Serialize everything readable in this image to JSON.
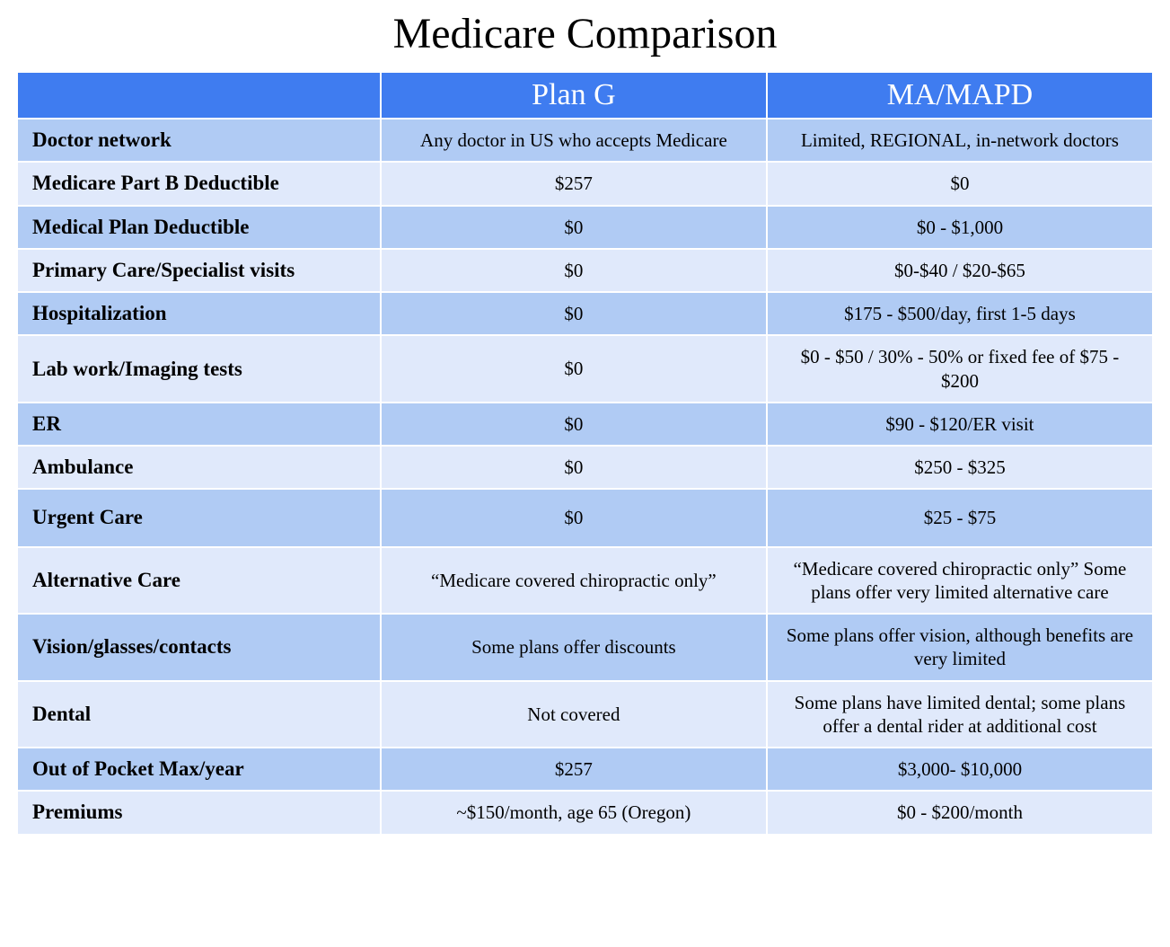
{
  "title": "Medicare Comparison",
  "columns": [
    "",
    "Plan G",
    "MA/MAPD"
  ],
  "colors": {
    "header_bg": "#3f7cf0",
    "header_text": "#ffffff",
    "band_a": "#b0cbf4",
    "band_b": "#e0e9fb",
    "text": "#000000",
    "background": "#ffffff"
  },
  "rows": [
    {
      "label": "Doctor network",
      "plan_g": "Any doctor in US who accepts Medicare",
      "ma": "Limited, REGIONAL, in-network doctors",
      "band": "a"
    },
    {
      "label": "Medicare Part B Deductible",
      "plan_g": "$257",
      "ma": "$0",
      "band": "b"
    },
    {
      "label": "Medical Plan Deductible",
      "plan_g": "$0",
      "ma": "$0 - $1,000",
      "band": "a"
    },
    {
      "label": "Primary Care/Specialist visits",
      "plan_g": "$0",
      "ma": "$0-$40 / $20-$65",
      "band": "b"
    },
    {
      "label": "Hospitalization",
      "plan_g": "$0",
      "ma": "$175 - $500/day, first 1-5 days",
      "band": "a"
    },
    {
      "label": "Lab work/Imaging tests",
      "plan_g": "$0",
      "ma": "$0 - $50  /  30% - 50% or fixed fee of $75 - $200",
      "band": "b"
    },
    {
      "label": "ER",
      "plan_g": "$0",
      "ma": "$90 - $120/ER visit",
      "band": "a"
    },
    {
      "label": "Ambulance",
      "plan_g": "$0",
      "ma": "$250 - $325",
      "band": "b"
    },
    {
      "label": "Urgent Care",
      "plan_g": "$0",
      "ma": "$25 - $75",
      "band": "a",
      "tall": true
    },
    {
      "label": "Alternative Care",
      "plan_g": "“Medicare covered chiropractic only”",
      "ma": "“Medicare covered chiropractic only” Some plans offer very limited alternative care",
      "band": "b"
    },
    {
      "label": "Vision/glasses/contacts",
      "plan_g": "Some plans offer discounts",
      "ma": "Some plans offer vision, although benefits are very  limited",
      "band": "a"
    },
    {
      "label": "Dental",
      "plan_g": "Not covered",
      "ma": "Some plans have limited dental; some plans offer a dental rider at additional cost",
      "band": "b"
    },
    {
      "label": "Out of Pocket Max/year",
      "plan_g": "$257",
      "ma": "$3,000- $10,000",
      "band": "a"
    },
    {
      "label": "Premiums",
      "plan_g": "~$150/month, age 65  (Oregon)",
      "ma": "$0 - $200/month",
      "band": "b"
    }
  ]
}
